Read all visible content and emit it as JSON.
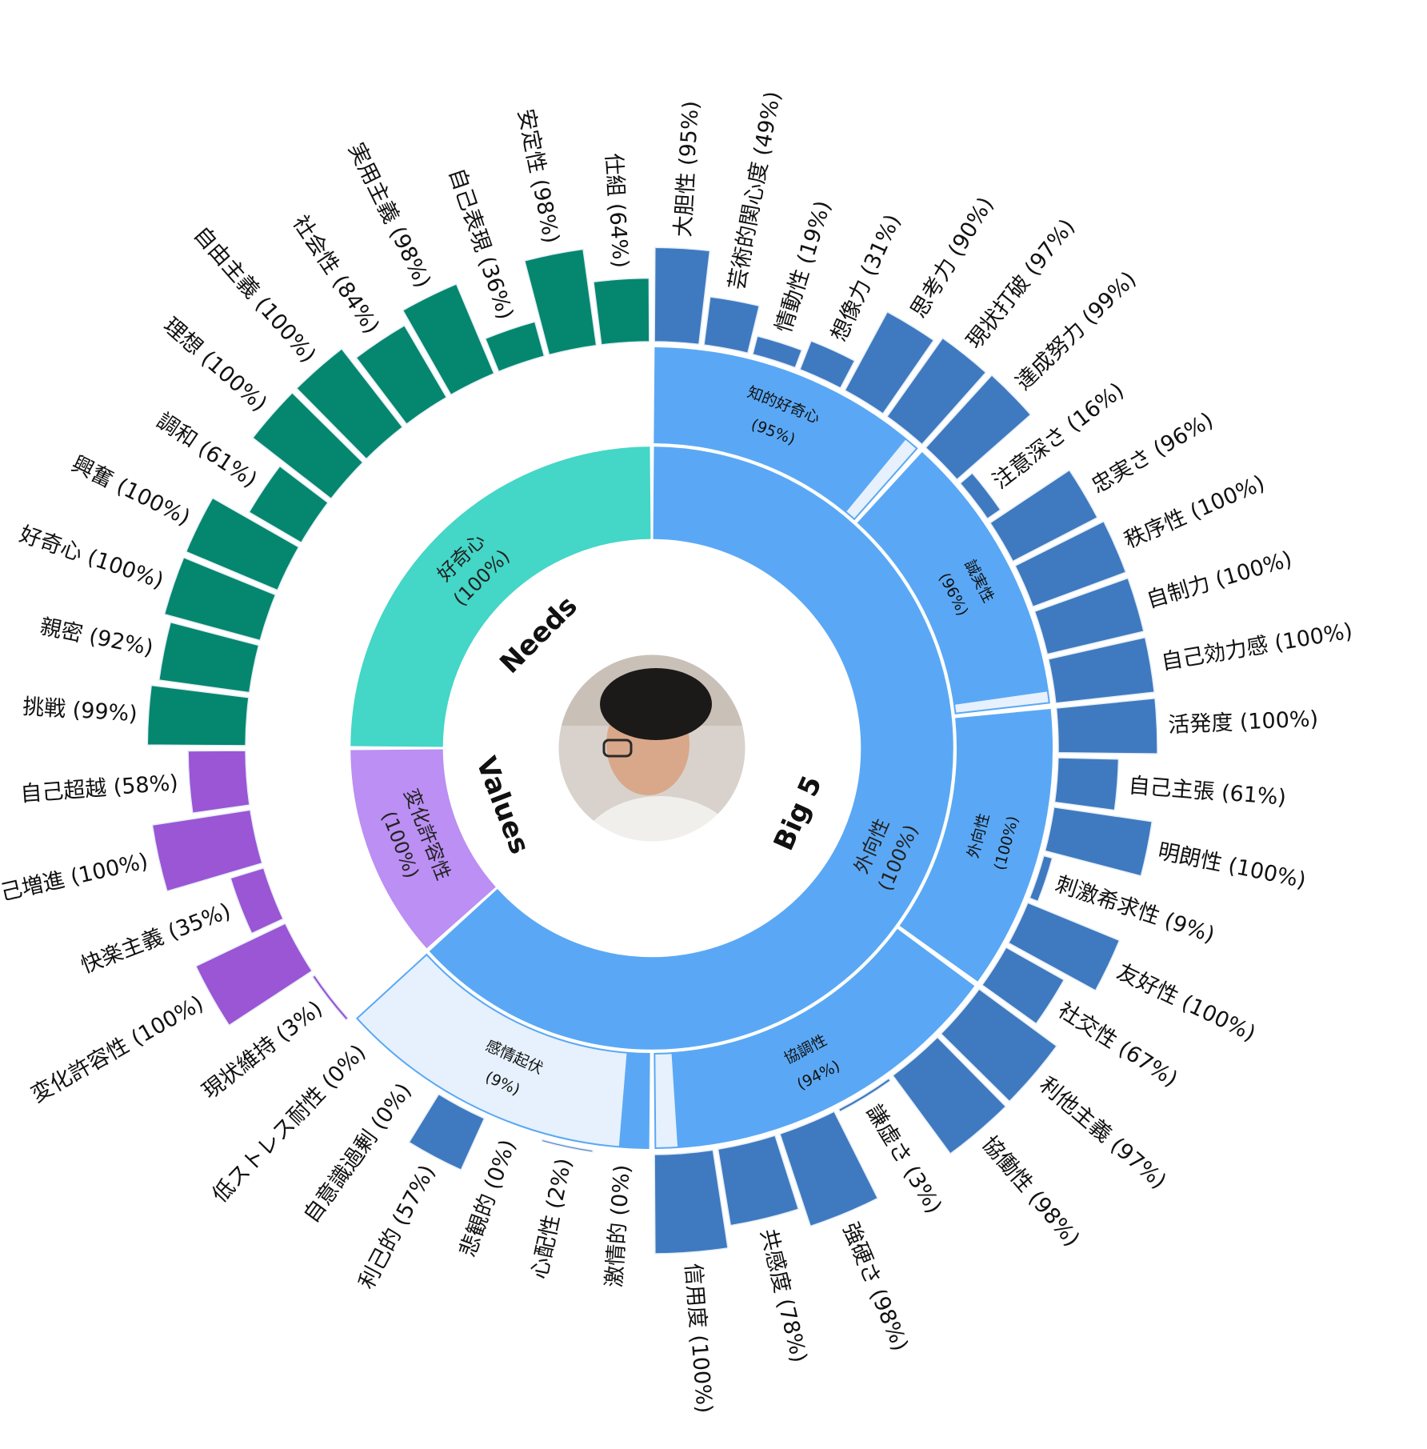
{
  "chart_data": {
    "type": "sunburst",
    "title": "",
    "colors": {
      "big5_inner": "#5aa8f5",
      "big5_bar": "#3f7ac0",
      "big5_pale": "#e6f1fd",
      "needs_inner": "#44d6c6",
      "needs_bar": "#04876e",
      "values_inner": "#bb8ff3",
      "values_bar": "#9a56d5",
      "separator": "#ffffff",
      "bar_stroke": "#e6eef8"
    },
    "center_photo": "person-photo",
    "sectors": [
      {
        "id": "big5",
        "label": "Big 5",
        "start": 0,
        "end": 228,
        "group": {
          "label": "外向性",
          "value": "(100%)",
          "score": 100
        },
        "traits": [
          {
            "label": "知的好奇心",
            "value": "(95%)",
            "score": 95,
            "start": 0,
            "end": 42,
            "facets": [
              {
                "label": "大胆性",
                "score": 95
              },
              {
                "label": "芸術的関心度",
                "score": 49
              },
              {
                "label": "情動性",
                "score": 19
              },
              {
                "label": "想像力",
                "score": 31
              },
              {
                "label": "思考力",
                "score": 90
              },
              {
                "label": "現状打破",
                "score": 97
              }
            ]
          },
          {
            "label": "誠実性",
            "value": "(96%)",
            "score": 96,
            "start": 42,
            "end": 84,
            "facets": [
              {
                "label": "達成努力",
                "score": 99
              },
              {
                "label": "注意深さ",
                "score": 16
              },
              {
                "label": "忠実さ",
                "score": 96
              },
              {
                "label": "秩序性",
                "score": 100
              },
              {
                "label": "自制力",
                "score": 100
              },
              {
                "label": "自己効力感",
                "score": 100
              }
            ]
          },
          {
            "label": "外向性",
            "value": "(100%)",
            "score": 100,
            "start": 84,
            "end": 126,
            "facets": [
              {
                "label": "活発度",
                "score": 100
              },
              {
                "label": "自己主張",
                "score": 61
              },
              {
                "label": "明朗性",
                "score": 100
              },
              {
                "label": "刺激希求性",
                "score": 9
              },
              {
                "label": "友好性",
                "score": 100
              },
              {
                "label": "社交性",
                "score": 67
              }
            ]
          },
          {
            "label": "協調性",
            "value": "(94%)",
            "score": 94,
            "start": 126,
            "end": 180,
            "facets": [
              {
                "label": "利他主義",
                "score": 97
              },
              {
                "label": "協働性",
                "score": 98
              },
              {
                "label": "謙虚さ",
                "score": 3
              },
              {
                "label": "強硬さ",
                "score": 98
              },
              {
                "label": "共感度",
                "score": 78
              },
              {
                "label": "信用度",
                "score": 100
              }
            ]
          },
          {
            "label": "感情起伏",
            "value": "(9%)",
            "score": 9,
            "start": 180,
            "end": 228,
            "facets": [
              {
                "label": "激情的",
                "score": 0
              },
              {
                "label": "心配性",
                "score": 2
              },
              {
                "label": "悲観的",
                "score": 0
              },
              {
                "label": "利己的",
                "score": 57
              },
              {
                "label": "自意識過剰",
                "score": 0
              },
              {
                "label": "低ストレス耐性",
                "score": 0
              }
            ]
          }
        ]
      },
      {
        "id": "values",
        "label": "Values",
        "start": 228,
        "end": 270,
        "group": {
          "label": "変化許容性",
          "value": "(100%)",
          "score": 100
        },
        "facets": [
          {
            "label": "現状維持",
            "score": 3
          },
          {
            "label": "変化許容性",
            "score": 100
          },
          {
            "label": "快楽主義",
            "score": 35
          },
          {
            "label": "自己増進",
            "score": 100
          },
          {
            "label": "自己超越",
            "score": 58
          }
        ]
      },
      {
        "id": "needs",
        "label": "Needs",
        "start": 270,
        "end": 360,
        "group": {
          "label": "好奇心",
          "value": "(100%)",
          "score": 100
        },
        "facets": [
          {
            "label": "挑戦",
            "score": 99
          },
          {
            "label": "親密",
            "score": 92
          },
          {
            "label": "好奇心",
            "score": 100
          },
          {
            "label": "興奮",
            "score": 100
          },
          {
            "label": "調和",
            "score": 61
          },
          {
            "label": "理想",
            "score": 100
          },
          {
            "label": "自由主義",
            "score": 100
          },
          {
            "label": "社会性",
            "score": 84
          },
          {
            "label": "実用主義",
            "score": 98
          },
          {
            "label": "自己表現",
            "score": 36
          },
          {
            "label": "安定性",
            "score": 98
          },
          {
            "label": "仕組",
            "score": 64
          }
        ]
      }
    ]
  }
}
